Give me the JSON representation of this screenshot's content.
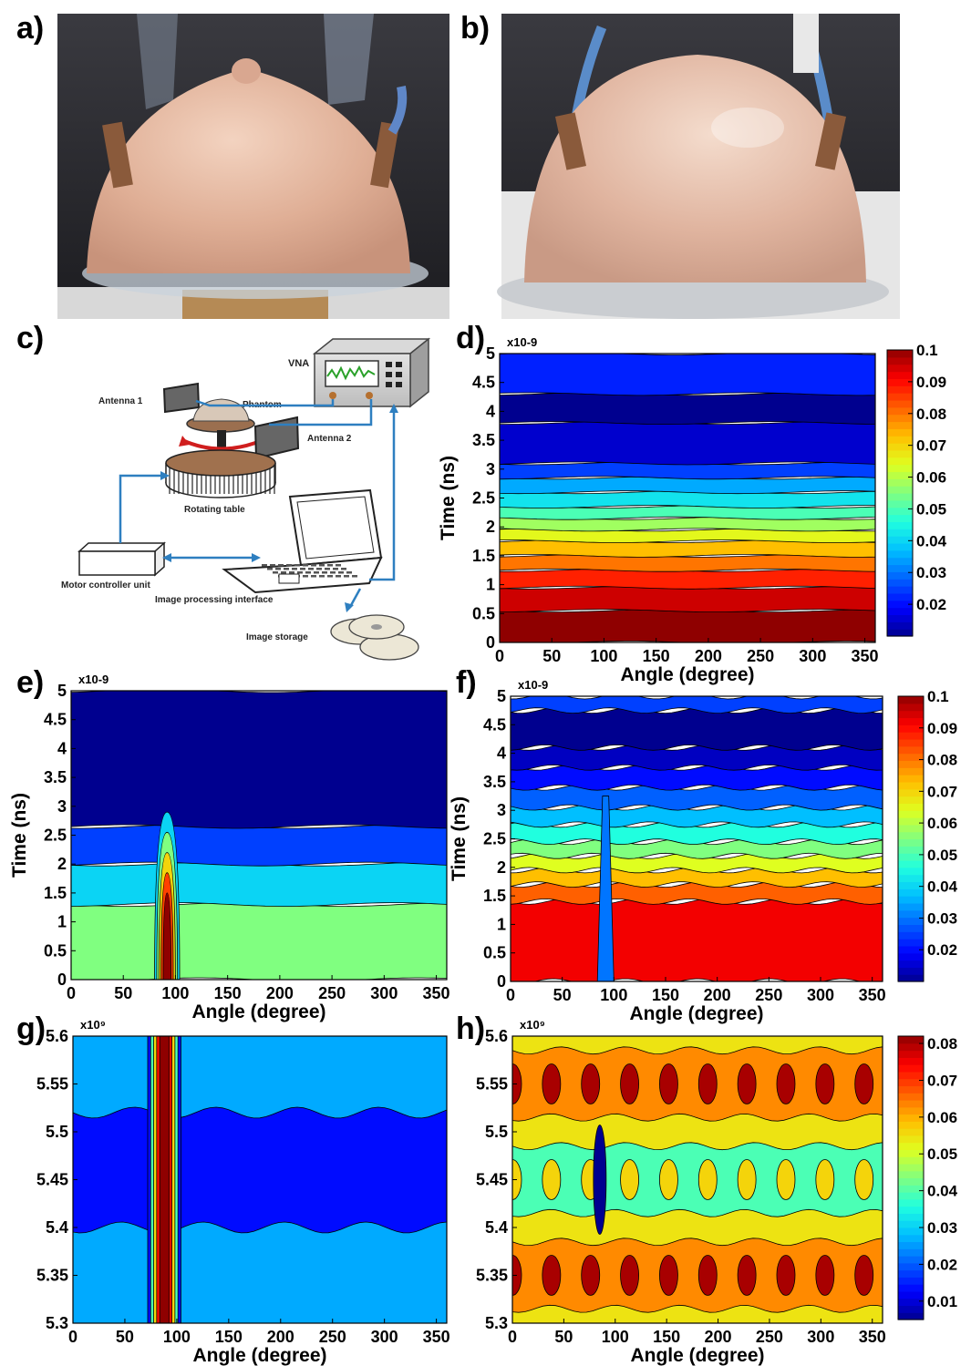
{
  "panels": {
    "a": {
      "letter": "a)"
    },
    "b": {
      "letter": "b)"
    },
    "c": {
      "letter": "c)"
    },
    "d": {
      "letter": "d)"
    },
    "e": {
      "letter": "e)"
    },
    "f": {
      "letter": "f)"
    },
    "g": {
      "letter": "g)"
    },
    "h": {
      "letter": "h)"
    }
  },
  "diagram_c": {
    "labels": {
      "vna": "VNA",
      "antenna1": "Antenna 1",
      "phantom": "Phantom",
      "antenna2": "Antenna 2",
      "rotating_table": "Rotating table",
      "motor_controller": "Motor controller unit",
      "image_processing": "Image processing interface",
      "image_storage": "Image storage"
    }
  },
  "colors": {
    "jet": [
      "#00008f",
      "#0000ff",
      "#0060ff",
      "#00bfff",
      "#20ffdf",
      "#80ff80",
      "#dfff20",
      "#ffbf00",
      "#ff6000",
      "#ff0000",
      "#8f0000"
    ],
    "connector": "#2e7fc0",
    "skin": "#e0b49a"
  },
  "chart_data": [
    {
      "panel": "d",
      "type": "heatmap",
      "subtype": "filled-contour",
      "xlabel": "Angle (degree)",
      "ylabel": "Time (ns)",
      "xticks": [
        "0",
        "50",
        "100",
        "150",
        "200",
        "250",
        "300",
        "350"
      ],
      "yticks": [
        "0",
        "0.5",
        "1",
        "1.5",
        "2",
        "2.5",
        "3",
        "3.5",
        "4",
        "4.5",
        "5"
      ],
      "y_multiplier": "x10-9",
      "xlim": [
        0,
        360
      ],
      "ylim": [
        0,
        5
      ],
      "colorbar": {
        "ticks": [
          "0.02",
          "0.03",
          "0.04",
          "0.05",
          "0.06",
          "0.07",
          "0.08",
          "0.09",
          "0.1"
        ],
        "range": [
          0.01,
          0.1
        ]
      },
      "bands": [
        {
          "y0": 0.0,
          "y1": 0.55,
          "value": 0.1
        },
        {
          "y0": 0.55,
          "y1": 0.95,
          "value": 0.095
        },
        {
          "y0": 0.95,
          "y1": 1.25,
          "value": 0.088
        },
        {
          "y0": 1.25,
          "y1": 1.5,
          "value": 0.08
        },
        {
          "y0": 1.5,
          "y1": 1.75,
          "value": 0.073
        },
        {
          "y0": 1.75,
          "y1": 1.95,
          "value": 0.065
        },
        {
          "y0": 1.95,
          "y1": 2.15,
          "value": 0.058
        },
        {
          "y0": 2.15,
          "y1": 2.35,
          "value": 0.05
        },
        {
          "y0": 2.35,
          "y1": 2.6,
          "value": 0.042
        },
        {
          "y0": 2.6,
          "y1": 2.85,
          "value": 0.035
        },
        {
          "y0": 2.85,
          "y1": 3.1,
          "value": 0.025
        },
        {
          "y0": 3.1,
          "y1": 3.8,
          "value": 0.015
        },
        {
          "y0": 3.8,
          "y1": 4.3,
          "value": 0.01
        },
        {
          "y0": 4.3,
          "y1": 5.0,
          "value": 0.022
        }
      ]
    },
    {
      "panel": "e",
      "type": "heatmap",
      "subtype": "filled-contour",
      "xlabel": "Angle (degree)",
      "ylabel": "Time (ns)",
      "xticks": [
        "0",
        "50",
        "100",
        "150",
        "200",
        "250",
        "300",
        "350"
      ],
      "yticks": [
        "0",
        "0.5",
        "1",
        "1.5",
        "2",
        "2.5",
        "3",
        "3.5",
        "4",
        "4.5",
        "5"
      ],
      "y_multiplier": "x10-9",
      "xlim": [
        0,
        360
      ],
      "ylim": [
        0,
        5
      ],
      "bands": [
        {
          "y0": 0.0,
          "y1": 1.3,
          "value": 0.055
        },
        {
          "y0": 1.3,
          "y1": 2.0,
          "value": 0.04
        },
        {
          "y0": 2.0,
          "y1": 2.65,
          "value": 0.025
        },
        {
          "y0": 2.65,
          "y1": 5.0,
          "value": 0.01
        }
      ],
      "hotspot": {
        "x_center": 92,
        "x_halfwidth": 12,
        "y_top": 2.9,
        "value": 0.1
      }
    },
    {
      "panel": "f",
      "type": "heatmap",
      "subtype": "filled-contour",
      "xlabel": "Angle (degree)",
      "ylabel": "Time (ns)",
      "xticks": [
        "0",
        "50",
        "100",
        "150",
        "200",
        "250",
        "300",
        "350"
      ],
      "yticks": [
        "0",
        "0.5",
        "1",
        "1.5",
        "2",
        "2.5",
        "3",
        "3.5",
        "4",
        "4.5",
        "5"
      ],
      "y_multiplier": "x10-9",
      "xlim": [
        0,
        360
      ],
      "ylim": [
        0,
        5
      ],
      "colorbar": {
        "ticks": [
          "0.02",
          "0.03",
          "0.04",
          "0.05",
          "0.06",
          "0.07",
          "0.08",
          "0.09",
          "0.1"
        ],
        "range": [
          0.01,
          0.1
        ]
      },
      "bands": [
        {
          "y0": 0.0,
          "y1": 1.4,
          "value": 0.092
        },
        {
          "y0": 1.4,
          "y1": 1.7,
          "value": 0.082
        },
        {
          "y0": 1.7,
          "y1": 1.95,
          "value": 0.073
        },
        {
          "y0": 1.95,
          "y1": 2.2,
          "value": 0.064
        },
        {
          "y0": 2.2,
          "y1": 2.45,
          "value": 0.055
        },
        {
          "y0": 2.45,
          "y1": 2.75,
          "value": 0.046
        },
        {
          "y0": 2.75,
          "y1": 3.05,
          "value": 0.037
        },
        {
          "y0": 3.05,
          "y1": 3.4,
          "value": 0.028
        },
        {
          "y0": 3.4,
          "y1": 3.75,
          "value": 0.02
        },
        {
          "y0": 3.75,
          "y1": 4.1,
          "value": 0.014
        },
        {
          "y0": 4.1,
          "y1": 4.75,
          "value": 0.01
        },
        {
          "y0": 4.75,
          "y1": 5.0,
          "value": 0.025
        }
      ],
      "notch": {
        "x_center": 92,
        "value": 0.03
      }
    },
    {
      "panel": "g",
      "type": "heatmap",
      "subtype": "filled-contour",
      "xlabel": "Angle (degree)",
      "ylabel": "",
      "xticks": [
        "0",
        "50",
        "100",
        "150",
        "200",
        "250",
        "300",
        "350"
      ],
      "yticks": [
        "5.3",
        "5.35",
        "5.4",
        "5.45",
        "5.5",
        "5.55",
        "5.6"
      ],
      "y_multiplier": "x10⁹",
      "xlim": [
        0,
        360
      ],
      "ylim": [
        5.3,
        5.6
      ],
      "background_value": 0.035,
      "stripe": {
        "x_center": 88,
        "x_halfwidth": 16,
        "value": 0.1
      },
      "lowband": {
        "y0": 5.4,
        "y1": 5.52,
        "value": 0.02
      }
    },
    {
      "panel": "h",
      "type": "heatmap",
      "subtype": "filled-contour",
      "xlabel": "Angle (degree)",
      "ylabel": "",
      "xticks": [
        "0",
        "50",
        "100",
        "150",
        "200",
        "250",
        "300",
        "350"
      ],
      "yticks": [
        "5.3",
        "5.35",
        "5.4",
        "5.45",
        "5.5",
        "5.55",
        "5.6"
      ],
      "y_multiplier": "x10⁹",
      "xlim": [
        0,
        360
      ],
      "ylim": [
        5.3,
        5.6
      ],
      "colorbar": {
        "ticks": [
          "0.01",
          "0.02",
          "0.03",
          "0.04",
          "0.05",
          "0.06",
          "0.07",
          "0.08"
        ],
        "range": [
          0.005,
          0.082
        ]
      },
      "background_value": 0.068,
      "rows": [
        {
          "y": 5.35,
          "value": 0.078
        },
        {
          "y": 5.45,
          "value": 0.05
        },
        {
          "y": 5.55,
          "value": 0.078
        }
      ],
      "notch": {
        "x_center": 85,
        "value": 0.01
      }
    }
  ]
}
